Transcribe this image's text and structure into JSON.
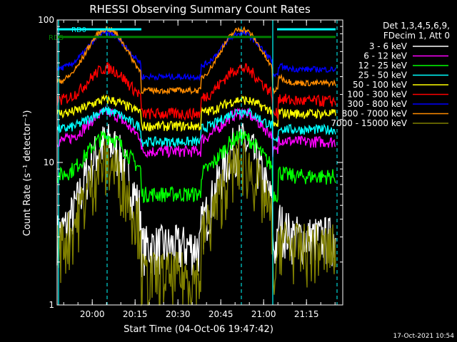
{
  "chart_data": {
    "type": "line",
    "title": "RHESSI Observing Summary Count Rates",
    "xlabel": "Start Time (04-Oct-06 19:47:42)",
    "ylabel": "Count Rate (s⁻¹ detector⁻¹)",
    "y_scale": "log",
    "ylim": [
      1,
      100
    ],
    "xlim_minutes_after_start": [
      0,
      100
    ],
    "y_ticks": [
      "1",
      "10",
      "100"
    ],
    "x_ticks": [
      "20:00",
      "20:15",
      "20:30",
      "20:45",
      "21:00",
      "21:15"
    ],
    "x_tick_minutes_after_start": [
      12.3,
      27.3,
      42.3,
      57.3,
      72.3,
      87.3
    ],
    "legend_header": [
      "Det 1,3,4,5,6,9,",
      "FDecim 1, Att 0"
    ],
    "legend_position": "right",
    "series": [
      {
        "name": "3 - 6 keV",
        "color": "#ffffff",
        "base": 3.0,
        "amp": 4.6,
        "noise": 0.25,
        "night": 2.6
      },
      {
        "name": "6 - 12 keV",
        "color": "#ff00ff",
        "base": 14.0,
        "amp": 1.6,
        "noise": 0.06,
        "night": 12.0
      },
      {
        "name": "12 - 25 keV",
        "color": "#00ff00",
        "base": 8.0,
        "amp": 1.9,
        "noise": 0.08,
        "night": 6.0
      },
      {
        "name": "25 - 50 keV",
        "color": "#00ffff",
        "base": 17.0,
        "amp": 1.35,
        "noise": 0.05,
        "night": 14.0
      },
      {
        "name": "50 - 100 keV",
        "color": "#ffff00",
        "base": 22.0,
        "amp": 1.25,
        "noise": 0.05,
        "night": 18.0
      },
      {
        "name": "100 - 300 keV",
        "color": "#ff0000",
        "base": 27.0,
        "amp": 1.7,
        "noise": 0.06,
        "night": 22.0
      },
      {
        "name": "300 - 800 keV",
        "color": "#0000ff",
        "base": 45.0,
        "amp": 1.8,
        "noise": 0.03,
        "night": 40.0
      },
      {
        "name": "800 - 7000 keV",
        "color": "#ff8c00",
        "base": 36.0,
        "amp": 2.4,
        "noise": 0.03,
        "night": 32.0
      },
      {
        "name": "7000 - 15000 keV",
        "color": "#808000",
        "base": 2.5,
        "amp": 4.0,
        "noise": 0.3,
        "night": 1.6
      }
    ],
    "orbit_peaks_minutes": [
      17.5,
      64.5
    ],
    "vertical_markers": {
      "solid_cyan_minutes": [
        0.5,
        75.5
      ],
      "dashed_cyan_minutes": [
        17.5,
        64.5,
        98.0
      ]
    },
    "annotation_bars": [
      {
        "label": "RD0",
        "color": "#00ffff",
        "y": 86,
        "segments": [
          [
            0,
            29.5
          ],
          [
            77,
            97.5
          ]
        ]
      },
      {
        "label": "RDS",
        "color": "#008000",
        "y": 76,
        "segments": [
          [
            0,
            50
          ],
          [
            50,
            75
          ],
          [
            77,
            97.5
          ]
        ]
      }
    ]
  },
  "footer": {
    "date_stamp": "17-Oct-2021 10:54"
  }
}
